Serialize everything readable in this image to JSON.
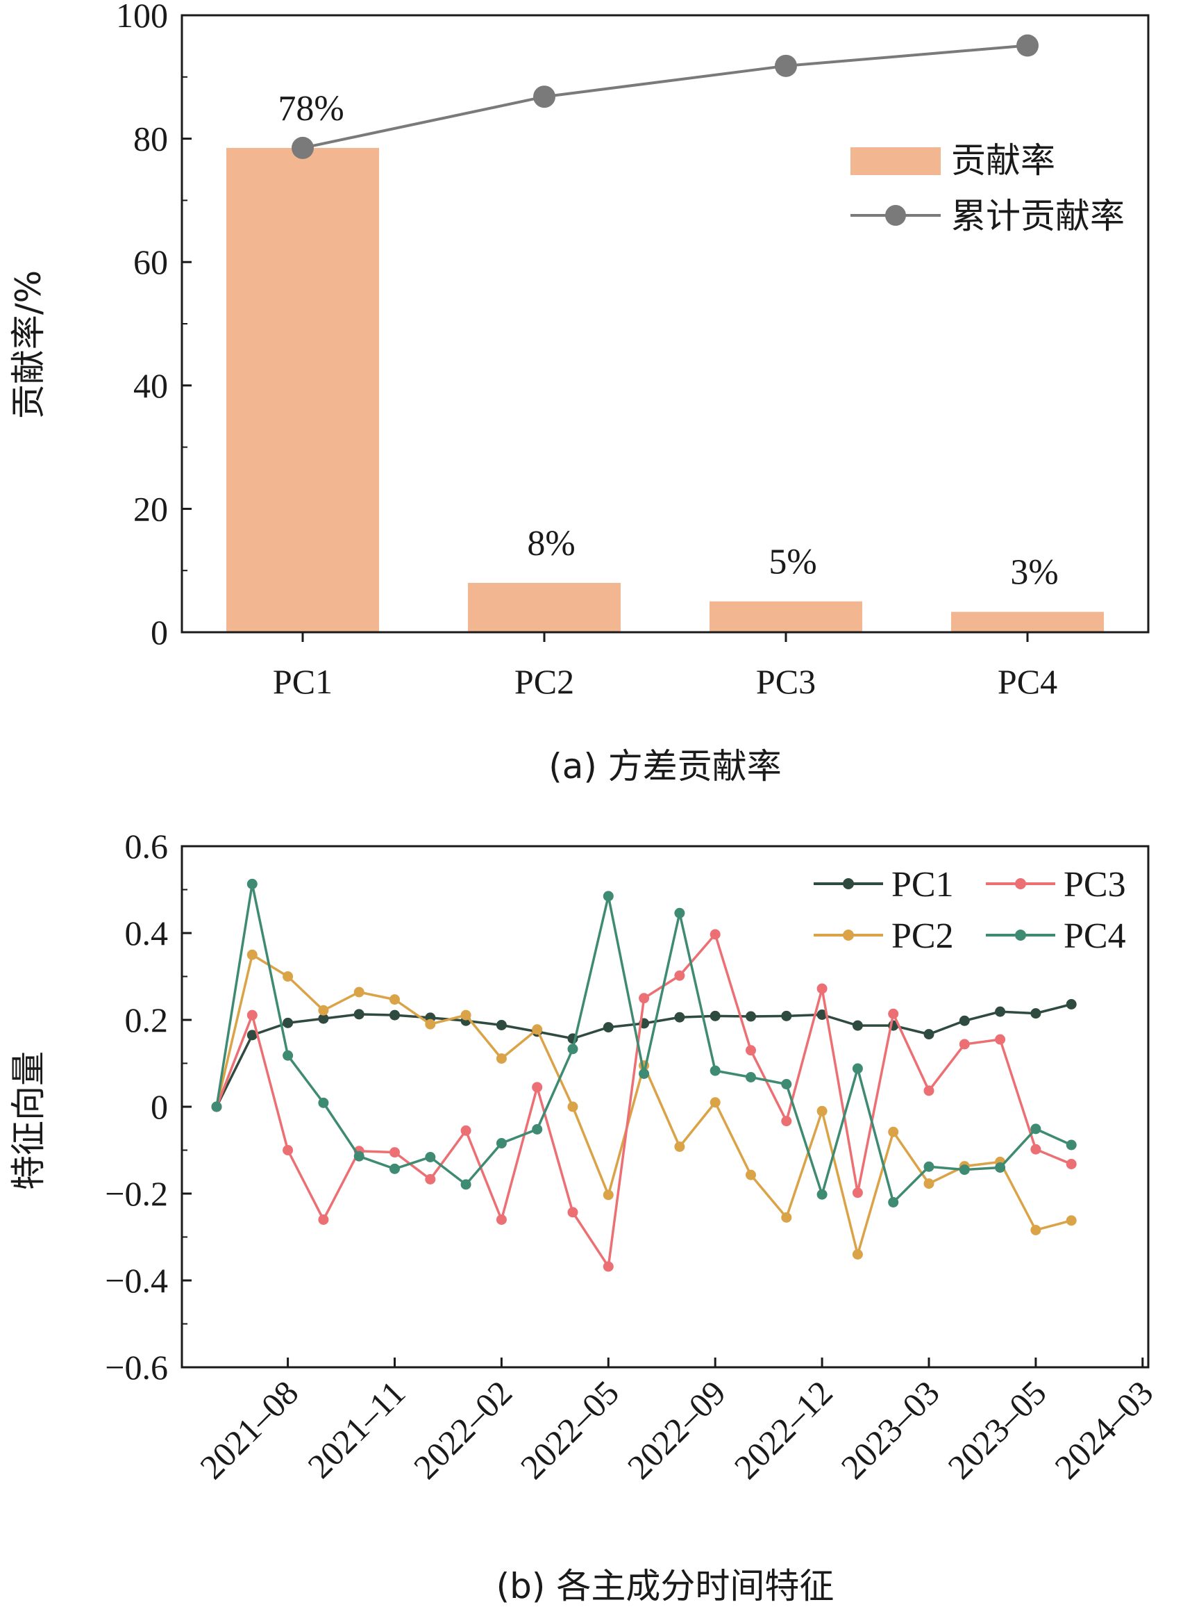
{
  "chart_data": [
    {
      "type": "bar",
      "categories": [
        "PC1",
        "PC2",
        "PC3",
        "PC4"
      ],
      "series": [
        {
          "name": "贡献率",
          "values": [
            78.5,
            8.0,
            5.0,
            3.3
          ],
          "color": "#f2b690"
        },
        {
          "name": "累计贡献率",
          "values": [
            78.5,
            86.8,
            91.8,
            95.1
          ],
          "color": "#7a7a7a"
        }
      ],
      "data_labels": [
        "78%",
        "8%",
        "5%",
        "3%"
      ],
      "ylabel": "贡献率/%",
      "ylim": [
        0,
        100
      ],
      "yticks": [
        "0",
        "20",
        "40",
        "60",
        "80",
        "100"
      ],
      "caption": "(a) 方差贡献率",
      "legend": "upper-right",
      "grid": false
    },
    {
      "type": "line",
      "ylabel": "特征向量",
      "ylim": [
        -0.6,
        0.6
      ],
      "yticks": [
        "0.6",
        "0.4",
        "0.2",
        "0",
        "−0.2",
        "−0.4",
        "−0.6"
      ],
      "xticks": [
        "2021–08",
        "2021–11",
        "2022–02",
        "2022–05",
        "2022–09",
        "2022–12",
        "2023–03",
        "2023–05",
        "2024–03"
      ],
      "caption": "(b) 各主成分时间特征",
      "legend": "upper-right",
      "grid": false,
      "series": [
        {
          "name": "PC1",
          "color": "#2f4a3f",
          "values": [
            0,
            0.165,
            0.193,
            0.203,
            0.213,
            0.211,
            0.205,
            0.198,
            0.188,
            0.173,
            0.157,
            0.183,
            0.192,
            0.206,
            0.209,
            0.208,
            0.209,
            0.212,
            0.187,
            0.187,
            0.167,
            0.198,
            0.219,
            0.215,
            0.236
          ]
        },
        {
          "name": "PC2",
          "color": "#daa348",
          "values": [
            0,
            0.35,
            0.3,
            0.222,
            0.264,
            0.247,
            0.19,
            0.211,
            0.111,
            0.178,
            0.0,
            -0.203,
            0.095,
            -0.092,
            0.01,
            -0.157,
            -0.255,
            -0.01,
            -0.34,
            -0.058,
            -0.177,
            -0.137,
            -0.127,
            -0.284,
            -0.262
          ]
        },
        {
          "name": "PC3",
          "color": "#ec6f74",
          "values": [
            0,
            0.211,
            -0.1,
            -0.26,
            -0.102,
            -0.105,
            -0.167,
            -0.055,
            -0.26,
            0.045,
            -0.243,
            -0.368,
            0.25,
            0.302,
            0.397,
            0.13,
            -0.033,
            0.272,
            -0.198,
            0.214,
            0.037,
            0.144,
            0.155,
            -0.098,
            -0.132
          ]
        },
        {
          "name": "PC4",
          "color": "#3f8a72",
          "values": [
            0,
            0.513,
            0.118,
            0.009,
            -0.114,
            -0.143,
            -0.116,
            -0.179,
            -0.084,
            -0.052,
            0.133,
            0.485,
            0.076,
            0.446,
            0.083,
            0.068,
            0.052,
            -0.202,
            0.088,
            -0.22,
            -0.138,
            -0.145,
            -0.14,
            -0.051,
            -0.088
          ]
        }
      ]
    }
  ]
}
